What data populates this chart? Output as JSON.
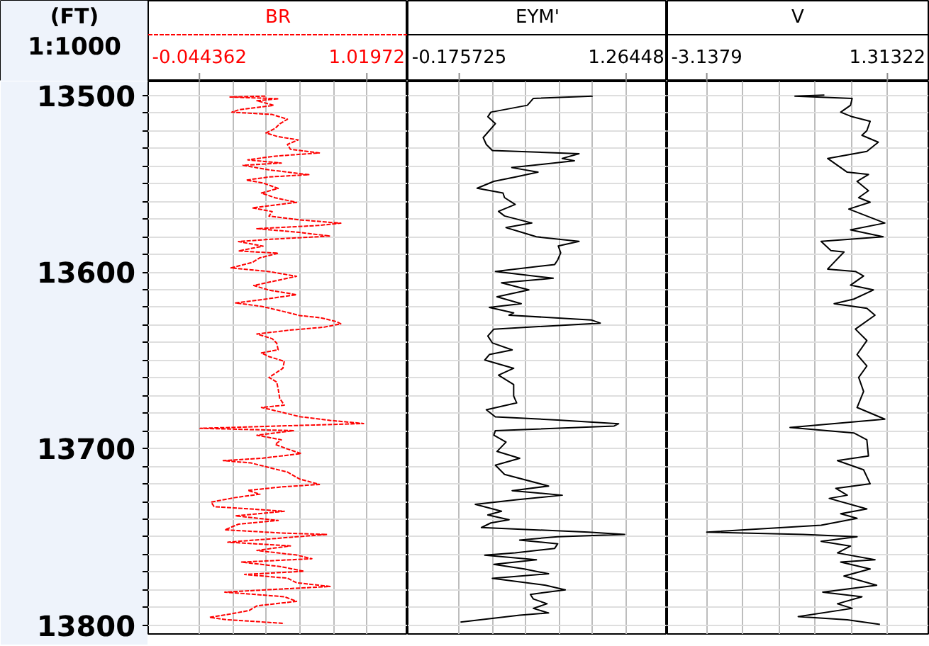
{
  "chart_data": [
    {
      "type": "line",
      "title": "BR",
      "ylabel": "(FT)",
      "annotations": [
        "1:1000"
      ],
      "line_style": "dashed",
      "grid": true,
      "xlim": [
        -0.37,
        1.28
      ],
      "xticks": [
        -0.044362,
        {
          "value": 0.168454,
          "label": null
        },
        {
          "value": 0.381271,
          "label": null
        },
        {
          "value": 0.594087,
          "label": null
        },
        {
          "value": 0.806904,
          "label": null
        },
        1.01972
      ],
      "ylim": [
        13805,
        13492
      ],
      "yticks": [
        13500,
        {
          "value": 13510,
          "label": null
        },
        {
          "value": 13520,
          "label": null
        },
        {
          "value": 13530,
          "label": null
        },
        {
          "value": 13540,
          "label": null
        },
        {
          "value": 13550,
          "label": null
        },
        {
          "value": 13560,
          "label": null
        },
        {
          "value": 13570,
          "label": null
        },
        {
          "value": 13580,
          "label": null
        },
        {
          "value": 13590,
          "label": null
        },
        13600,
        {
          "value": 13610,
          "label": null
        },
        {
          "value": 13620,
          "label": null
        },
        {
          "value": 13630,
          "label": null
        },
        {
          "value": 13640,
          "label": null
        },
        {
          "value": 13650,
          "label": null
        },
        {
          "value": 13660,
          "label": null
        },
        {
          "value": 13670,
          "label": null
        },
        {
          "value": 13680,
          "label": null
        },
        {
          "value": 13690,
          "label": null
        },
        13700,
        {
          "value": 13710,
          "label": null
        },
        {
          "value": 13720,
          "label": null
        },
        {
          "value": 13730,
          "label": null
        },
        {
          "value": 13740,
          "label": null
        },
        {
          "value": 13750,
          "label": null
        },
        {
          "value": 13760,
          "label": null
        },
        {
          "value": 13770,
          "label": null
        },
        {
          "value": 13780,
          "label": null
        },
        {
          "value": 13790,
          "label": null
        },
        13800
      ],
      "series": [
        {
          "color": "#ff0000",
          "x": [
            0.375,
            0.15,
            0.46,
            0.321,
            0.427,
            0.204,
            0.162,
            0.418,
            0.515,
            0.466,
            0.437,
            0.379,
            0.456,
            0.583,
            0.515,
            0.534,
            0.718,
            0.437,
            0.263,
            0.476,
            0.233,
            0.398,
            0.651,
            0.398,
            0.253,
            0.36,
            0.456,
            0.35,
            0.437,
            0.573,
            0.292,
            0.418,
            0.398,
            0.592,
            0.854,
            0.709,
            0.321,
            0.592,
            0.786,
            0.408,
            0.204,
            0.36,
            0.204,
            0.456,
            0.34,
            0.292,
            0.156,
            0.398,
            0.573,
            0.437,
            0.301,
            0.398,
            0.573,
            0.369,
            0.185,
            0.35,
            0.476,
            0.592,
            0.728,
            0.825,
            0.854,
            0.748,
            0.515,
            0.321,
            0.418,
            0.447,
            0.456,
            0.35,
            0.398,
            0.495,
            0.486,
            0.398,
            0.447,
            0.456,
            0.466,
            0.495,
            0.35,
            0.476,
            0.592,
            0.786,
            0.999,
            -0.04,
            0.553,
            0.321,
            0.476,
            0.437,
            0.515,
            0.602,
            0.36,
            0.107,
            0.282,
            0.398,
            0.515,
            0.592,
            0.718,
            0.476,
            0.263,
            0.34,
            0.185,
            0.03,
            0.049,
            0.282,
            0.495,
            0.185,
            0.456,
            0.204,
            0.117,
            0.476,
            0.767,
            0.398,
            0.136,
            0.534,
            0.321,
            0.573,
            0.67,
            0.224,
            0.476,
            0.621,
            0.243,
            0.515,
            0.573,
            0.786,
            0.379,
            0.117,
            0.495,
            0.573,
            0.321,
            0.272,
            0.146,
            0.02,
            0.127,
            0.495
          ],
          "values": [
            13500.3,
            13500.8,
            13501.8,
            13502.9,
            13505.5,
            13508.1,
            13509.4,
            13510.7,
            13513.4,
            13516,
            13518.6,
            13521.2,
            13523.3,
            13525.1,
            13527.7,
            13530.4,
            13532.5,
            13534.3,
            13536.4,
            13538.2,
            13539.5,
            13542.1,
            13544.8,
            13546.1,
            13547.9,
            13549.5,
            13552.6,
            13555.2,
            13557.9,
            13560.5,
            13563.6,
            13565.7,
            13568.3,
            13570.4,
            13572.3,
            13573.6,
            13575.4,
            13577.5,
            13579.6,
            13581.4,
            13582.7,
            13585.3,
            13588,
            13589.3,
            13591.9,
            13594.5,
            13597.6,
            13599.7,
            13602.4,
            13605,
            13607.6,
            13610.2,
            13612.8,
            13615.4,
            13617.5,
            13619.4,
            13622,
            13624.6,
            13625.9,
            13628,
            13629.3,
            13631.2,
            13633,
            13635.1,
            13637.7,
            13640.3,
            13644,
            13645.8,
            13647.9,
            13650.5,
            13654.5,
            13659.7,
            13662.3,
            13666.2,
            13671.5,
            13675.4,
            13676.7,
            13679.3,
            13681.9,
            13684,
            13685.8,
            13688.5,
            13689.8,
            13692.4,
            13695,
            13697.6,
            13700.2,
            13702.8,
            13705.4,
            13706.8,
            13708.1,
            13710.7,
            13713.3,
            13717.2,
            13720.3,
            13721.7,
            13723.7,
            13725.8,
            13727.7,
            13730.3,
            13732.9,
            13734.2,
            13735.5,
            13738.1,
            13740.7,
            13742.8,
            13746,
            13747.8,
            13748.6,
            13751.2,
            13753,
            13755.1,
            13757.7,
            13760.3,
            13762.4,
            13764.3,
            13766.9,
            13769.5,
            13771.3,
            13773.4,
            13776,
            13778.1,
            13780,
            13781.3,
            13783.9,
            13786.5,
            13789.1,
            13791.7,
            13793.8,
            13795.6,
            13796.9,
            13799
          ]
        }
      ]
    },
    {
      "type": "line",
      "title": "EYM'",
      "tick_labels": "x",
      "grid": true,
      "xlim": [
        -0.62,
        1.62
      ],
      "xticks": [
        -0.175725,
        {
          "value": 0.112316,
          "label": null
        },
        {
          "value": 0.400357,
          "label": null
        },
        {
          "value": 0.688398,
          "label": null
        },
        {
          "value": 0.976439,
          "label": null
        },
        1.26448
      ],
      "ylim": [
        13805,
        13492
      ],
      "yticks": [
        13500,
        {
          "value": 13510,
          "label": null
        },
        {
          "value": 13520,
          "label": null
        },
        {
          "value": 13530,
          "label": null
        },
        {
          "value": 13540,
          "label": null
        },
        {
          "value": 13550,
          "label": null
        },
        {
          "value": 13560,
          "label": null
        },
        {
          "value": 13570,
          "label": null
        },
        {
          "value": 13580,
          "label": null
        },
        {
          "value": 13590,
          "label": null
        },
        13600,
        {
          "value": 13610,
          "label": null
        },
        {
          "value": 13620,
          "label": null
        },
        {
          "value": 13630,
          "label": null
        },
        {
          "value": 13640,
          "label": null
        },
        {
          "value": 13650,
          "label": null
        },
        {
          "value": 13660,
          "label": null
        },
        {
          "value": 13670,
          "label": null
        },
        {
          "value": 13680,
          "label": null
        },
        {
          "value": 13690,
          "label": null
        },
        13700,
        {
          "value": 13710,
          "label": null
        },
        {
          "value": 13720,
          "label": null
        },
        {
          "value": 13730,
          "label": null
        },
        {
          "value": 13740,
          "label": null
        },
        {
          "value": 13750,
          "label": null
        },
        {
          "value": 13760,
          "label": null
        },
        {
          "value": 13770,
          "label": null
        },
        {
          "value": 13780,
          "label": null
        },
        {
          "value": 13790,
          "label": null
        },
        13800
      ],
      "series": [
        {
          "color": "#000000",
          "x": [
            0.976,
            0.464,
            0.412,
            0.097,
            0.071,
            0.136,
            0.031,
            0.058,
            0.11,
            0.858,
            0.713,
            0.818,
            0.278,
            0.504,
            0.32,
            0.123,
            -0.021,
            0.202,
            0.215,
            0.307,
            0.163,
            0.215,
            0.451,
            0.228,
            0.359,
            0.49,
            0.858,
            0.679,
            0.7,
            0.674,
            0.648,
            0.136,
            0.635,
            0.189,
            0.425,
            0.15,
            0.359,
            0.084,
            0.294,
            0.254,
            0.963,
            1.041,
            0.123,
            0.071,
            0.11,
            0.281,
            0.084,
            0.045,
            0.294,
            0.163,
            0.294,
            0.294,
            0.32,
            0.058,
            0.136,
            0.674,
            1.2,
            1.161,
            0.136,
            0.123,
            0.228,
            0.15,
            0.346,
            0.136,
            0.215,
            0.595,
            0.281,
            0.713,
            0.32,
            -0.037,
            0.189,
            0.071,
            0.254,
            0.097,
            0.016,
            0.939,
            1.251,
            0.674,
            0.346,
            0.674,
            0.648,
            0.307,
            0.045,
            0.49,
            0.123,
            0.386,
            0.595,
            0.11,
            0.569,
            0.739,
            0.438,
            0.464,
            0.582,
            0.464,
            0.595,
            0.346,
            -0.165
          ],
          "values": [
            13500.3,
            13501.6,
            13505.5,
            13509.4,
            13512,
            13515.9,
            13523.8,
            13527.7,
            13531.1,
            13532.9,
            13535.6,
            13536.9,
            13540.8,
            13543.4,
            13546,
            13548.6,
            13552.5,
            13555.2,
            13557.8,
            13561.7,
            13565.6,
            13568.2,
            13572.2,
            13574.8,
            13577.4,
            13580,
            13582.6,
            13585.2,
            13589.1,
            13593.1,
            13595.7,
            13599.6,
            13603.5,
            13606.1,
            13610.1,
            13614,
            13617.9,
            13620,
            13623.1,
            13624.4,
            13627.1,
            13628.9,
            13632.3,
            13636.2,
            13640.1,
            13644.1,
            13646.7,
            13649.8,
            13654.5,
            13658.4,
            13663.7,
            13670.2,
            13674.1,
            13678,
            13682,
            13683.8,
            13685.9,
            13687.2,
            13689.8,
            13692.4,
            13696.3,
            13701.6,
            13705.5,
            13709.4,
            13714.6,
            13721.2,
            13723.8,
            13726.4,
            13729,
            13731.6,
            13735.5,
            13737.6,
            13740.3,
            13742.1,
            13744.7,
            13747.3,
            13748.6,
            13749.9,
            13751.8,
            13753.9,
            13756.5,
            13759.1,
            13760.4,
            13763,
            13765.6,
            13768.2,
            13770.9,
            13773.5,
            13777.4,
            13780,
            13782.6,
            13785.2,
            13787.9,
            13790.5,
            13793.1,
            13794.4,
            13798.3
          ]
        }
      ]
    },
    {
      "type": "line",
      "title": "V",
      "tick_labels": "x",
      "grid": true,
      "xlim": [
        -4.11,
        2.32
      ],
      "xticks": [
        -3.1379,
        {
          "value": -2.247676,
          "label": null
        },
        {
          "value": -1.357452,
          "label": null
        },
        {
          "value": -0.467228,
          "label": null
        },
        {
          "value": 0.422996,
          "label": null
        },
        1.31322
      ],
      "ylim": [
        13805,
        13492
      ],
      "yticks": [
        13500,
        {
          "value": 13510,
          "label": null
        },
        {
          "value": 13520,
          "label": null
        },
        {
          "value": 13530,
          "label": null
        },
        {
          "value": 13540,
          "label": null
        },
        {
          "value": 13550,
          "label": null
        },
        {
          "value": 13560,
          "label": null
        },
        {
          "value": 13570,
          "label": null
        },
        {
          "value": 13580,
          "label": null
        },
        {
          "value": 13590,
          "label": null
        },
        13600,
        {
          "value": 13610,
          "label": null
        },
        {
          "value": 13620,
          "label": null
        },
        {
          "value": 13630,
          "label": null
        },
        {
          "value": 13640,
          "label": null
        },
        {
          "value": 13650,
          "label": null
        },
        {
          "value": 13660,
          "label": null
        },
        {
          "value": 13670,
          "label": null
        },
        {
          "value": 13680,
          "label": null
        },
        {
          "value": 13690,
          "label": null
        },
        13700,
        {
          "value": 13710,
          "label": null
        },
        {
          "value": 13720,
          "label": null
        },
        {
          "value": 13730,
          "label": null
        },
        {
          "value": 13740,
          "label": null
        },
        {
          "value": 13750,
          "label": null
        },
        {
          "value": 13760,
          "label": null
        },
        {
          "value": 13770,
          "label": null
        },
        {
          "value": 13780,
          "label": null
        },
        {
          "value": 13790,
          "label": null
        },
        13800
      ],
      "series": [
        {
          "color": "#000000",
          "x": [
            -0.24,
            -0.965,
            0.444,
            0.404,
            0.162,
            0.444,
            0.887,
            0.806,
            0.685,
            1.088,
            0.806,
            -0.16,
            0.162,
            0.323,
            0.846,
            0.565,
            0.846,
            0.605,
            0.887,
            0.363,
            1.249,
            0.404,
            1.208,
            -0.321,
            -0.079,
            0.243,
            -0.16,
            0.524,
            0.726,
            0.404,
            0.967,
            0.484,
            0.001,
            0.806,
            1.007,
            0.524,
            0.806,
            0.565,
            0.806,
            0.605,
            0.726,
            0.565,
            1.249,
            -1.086,
            0.484,
            0.806,
            0.846,
            0.082,
            0.726,
            0.887,
            0.041,
            0.323,
            -0.12,
            0.806,
            0.162,
            0.565,
            -0.321,
            -3.1379,
            -0.764,
            0.565,
            -0.321,
            0.404,
            0.082,
            1.007,
            0.162,
            0.887,
            0.243,
            1.047,
            -0.281,
            0.685,
            0.082,
            0.444,
            -0.884,
            0.323,
            1.128
          ],
          "values": [
            13499.7,
            13500.3,
            13501.6,
            13505.5,
            13509.4,
            13512,
            13514.6,
            13519.9,
            13522.5,
            13526.4,
            13531.6,
            13535.6,
            13540.8,
            13543.4,
            13544.7,
            13548.6,
            13553.9,
            13557.8,
            13560.4,
            13564.3,
            13572.2,
            13576.1,
            13580,
            13582.6,
            13587.8,
            13588.6,
            13598.3,
            13599.6,
            13602.2,
            13607.4,
            13610.1,
            13615.3,
            13617.9,
            13620.5,
            13624.4,
            13632.3,
            13638.8,
            13646.7,
            13653.2,
            13659.7,
            13667.6,
            13676.7,
            13683.3,
            13688,
            13691.1,
            13695,
            13704.2,
            13706.8,
            13712,
            13719.9,
            13722.5,
            13726.4,
            13728.2,
            13734.2,
            13736.9,
            13739.5,
            13743.4,
            13747.3,
            13748.6,
            13749.9,
            13752.5,
            13755.2,
            13759.1,
            13763,
            13764.3,
            13768.2,
            13772.2,
            13777.4,
            13781.3,
            13783.9,
            13787.9,
            13790.5,
            13795.2,
            13797,
            13799.6
          ]
        }
      ]
    }
  ]
}
